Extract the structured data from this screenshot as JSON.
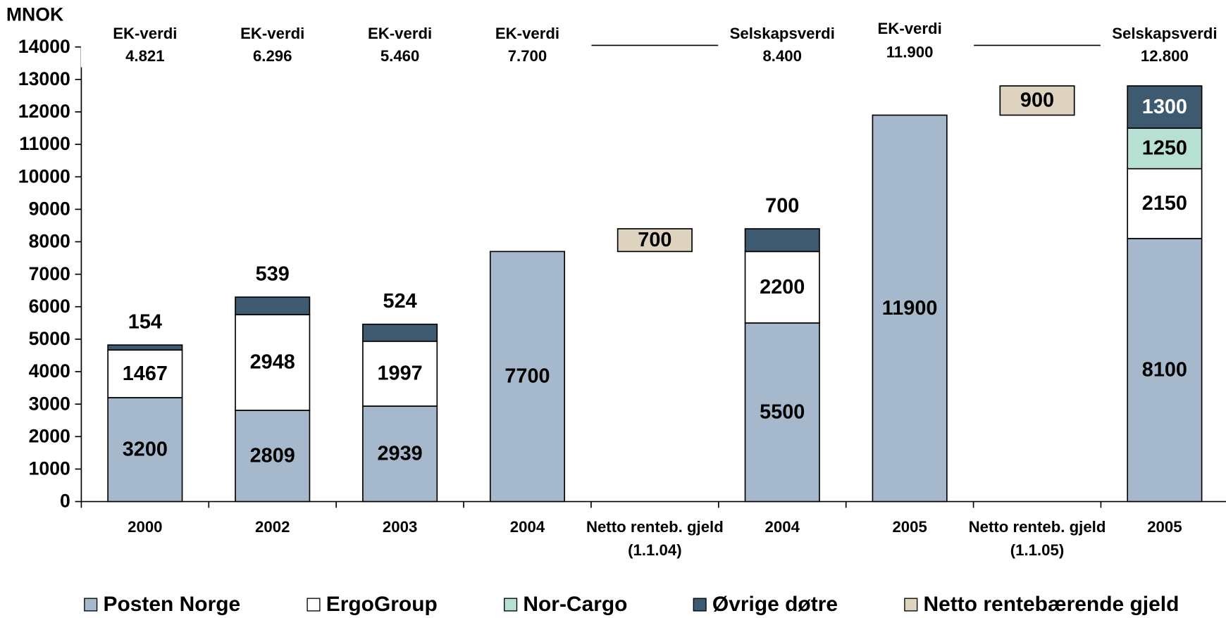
{
  "chart_data": {
    "type": "bar",
    "stacked": true,
    "y_label": "MNOK",
    "categories": [
      "2000",
      "2002",
      "2003",
      "2004",
      "Netto renteb. gjeld (1.1.04)",
      "2004",
      "2005",
      "Netto renteb. gjeld (1.1.05)",
      "2005"
    ],
    "top_labels": [
      [
        "EK-verdi",
        "4.821"
      ],
      [
        "EK-verdi",
        "6.296"
      ],
      [
        "EK-verdi",
        "5.460"
      ],
      [
        "EK-verdi",
        "7.700"
      ],
      null,
      [
        "Selskapsverdi",
        "8.400"
      ],
      [
        "EK-verdi",
        "11.900"
      ],
      null,
      [
        "Selskapsverdi",
        "12.800"
      ]
    ],
    "series": [
      {
        "name": "Posten Norge",
        "color": "#a6b8cb",
        "values": [
          3200,
          2809,
          2939,
          7700,
          null,
          5500,
          11900,
          null,
          8100
        ]
      },
      {
        "name": "ErgoGroup",
        "color": "#ffffff",
        "values": [
          1467,
          2948,
          1997,
          null,
          null,
          2200,
          null,
          null,
          2150
        ]
      },
      {
        "name": "Nor-Cargo",
        "color": "#b5e0d3",
        "values": [
          null,
          null,
          null,
          null,
          null,
          null,
          null,
          null,
          1250
        ]
      },
      {
        "name": "Øvrige døtre",
        "color": "#3d5a70",
        "values": [
          154,
          539,
          524,
          null,
          null,
          700,
          null,
          null,
          1300
        ]
      },
      {
        "name": "Netto rentebærende gjeld",
        "color": "#ddd3bf",
        "floating": true,
        "values": [
          null,
          null,
          null,
          null,
          700,
          null,
          null,
          900,
          null
        ]
      }
    ],
    "ylim": [
      0,
      14000
    ],
    "yticks": [
      0,
      1000,
      2000,
      3000,
      4000,
      5000,
      6000,
      7000,
      8000,
      9000,
      10000,
      11000,
      12000,
      13000,
      14000
    ],
    "legend": "bottom"
  }
}
